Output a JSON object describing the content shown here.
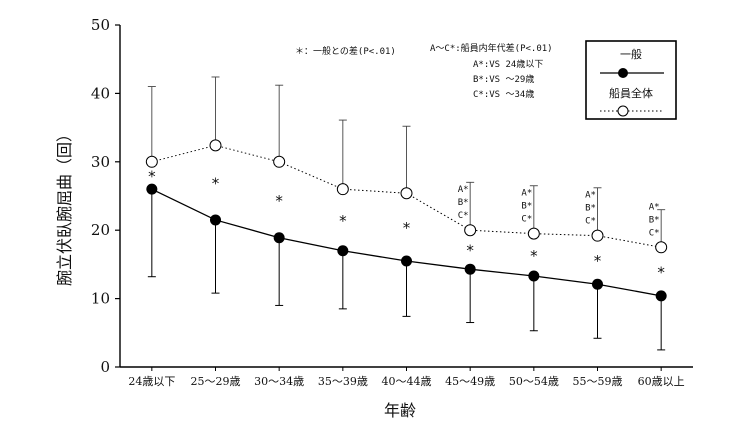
{
  "chart_data": {
    "type": "line",
    "ylabel": "腕立伏臥腕屈曲（回）",
    "xlabel": "年齢",
    "ylim": [
      0,
      50
    ],
    "yticks": [
      "0",
      "10",
      "20",
      "30",
      "40",
      "50"
    ],
    "categories": [
      "24歳以下",
      "25～29歳",
      "30～34歳",
      "35～39歳",
      "40～44歳",
      "45～49歳",
      "50～54歳",
      "55～59歳",
      "60歳以上"
    ],
    "series": [
      {
        "name": "一般",
        "marker": "filled-circle",
        "line": "solid",
        "color": "#000000",
        "values": [
          26.0,
          21.5,
          18.9,
          17.0,
          15.5,
          14.3,
          13.3,
          12.1,
          10.4
        ],
        "sd_lower": [
          13.2,
          10.8,
          9.0,
          8.5,
          7.4,
          6.5,
          5.3,
          4.2,
          2.5
        ]
      },
      {
        "name": "船員全体",
        "marker": "open-circle",
        "line": "dotted",
        "color": "#000000",
        "values": [
          30.0,
          32.4,
          30.0,
          26.0,
          25.4,
          20.0,
          19.5,
          19.2,
          17.5
        ],
        "sd_upper": [
          41.0,
          42.4,
          41.2,
          36.1,
          35.2,
          27.0,
          26.5,
          26.2,
          23.0
        ]
      }
    ],
    "significance_star": [
      true,
      true,
      true,
      true,
      true,
      true,
      true,
      true,
      true
    ],
    "significance_letters": [
      "",
      "",
      "",
      "",
      "",
      "A*B*C*",
      "A*B*C*",
      "A*B*C*",
      "A*B*C*"
    ],
    "annotations": {
      "note_general": "＊：一般との差(P<.01)",
      "note_group": "A～C*:船員内年代差(P<.01)",
      "note_a": "A*:VS 24歳以下",
      "note_b": "B*:VS ～29歳",
      "note_c": "C*:VS ～34歳"
    },
    "letter_labels": [
      "A*",
      "B*",
      "C*"
    ],
    "legend": {
      "position": "top-right"
    }
  }
}
